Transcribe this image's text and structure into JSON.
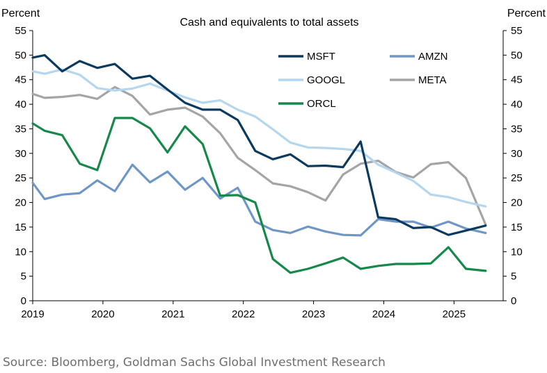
{
  "source_note": "Source: Bloomberg, Goldman Sachs Global Investment Research",
  "chart_data": {
    "type": "line",
    "title": "Cash and equivalents to total assets",
    "ylabel_left": "Percent",
    "ylabel_right": "Percent",
    "ylim": [
      0,
      55
    ],
    "yticks": [
      0,
      5,
      10,
      15,
      20,
      25,
      30,
      35,
      40,
      45,
      50,
      55
    ],
    "xlim": [
      2019.0,
      2025.7
    ],
    "xticks": [
      "2019",
      "2020",
      "2021",
      "2022",
      "2023",
      "2024",
      "2025"
    ],
    "grid": false,
    "legend_position": "top-right",
    "series": [
      {
        "name": "MSFT",
        "color": "#0b3a5e",
        "x": [
          2019.0,
          2019.17,
          2019.42,
          2019.67,
          2019.92,
          2020.17,
          2020.42,
          2020.67,
          2020.92,
          2021.17,
          2021.42,
          2021.67,
          2021.92,
          2022.17,
          2022.42,
          2022.67,
          2022.92,
          2023.17,
          2023.42,
          2023.67,
          2023.92,
          2024.17,
          2024.42,
          2024.67,
          2024.92,
          2025.17,
          2025.45
        ],
        "y": [
          49.5,
          50.0,
          46.7,
          48.8,
          47.4,
          48.2,
          45.2,
          45.8,
          43.0,
          40.3,
          38.9,
          38.9,
          36.8,
          30.5,
          28.8,
          29.8,
          27.4,
          27.5,
          27.2,
          32.4,
          17.0,
          16.6,
          14.8,
          15.0,
          13.4,
          14.3,
          15.3
        ]
      },
      {
        "name": "AMZN",
        "color": "#6e97c8",
        "x": [
          2019.0,
          2019.17,
          2019.42,
          2019.67,
          2019.92,
          2020.17,
          2020.42,
          2020.67,
          2020.92,
          2021.17,
          2021.42,
          2021.67,
          2021.92,
          2022.17,
          2022.42,
          2022.67,
          2022.92,
          2023.17,
          2023.42,
          2023.67,
          2023.92,
          2024.17,
          2024.42,
          2024.67,
          2024.92,
          2025.17,
          2025.45
        ],
        "y": [
          24.0,
          20.7,
          21.6,
          21.9,
          24.5,
          22.3,
          27.7,
          24.1,
          26.3,
          22.6,
          25.0,
          20.8,
          23.0,
          16.1,
          14.4,
          13.8,
          15.1,
          14.1,
          13.4,
          13.3,
          16.6,
          16.1,
          16.1,
          14.9,
          16.1,
          14.7,
          13.8
        ]
      },
      {
        "name": "GOOGL",
        "color": "#b4d6ef",
        "x": [
          2019.0,
          2019.17,
          2019.42,
          2019.67,
          2019.92,
          2020.17,
          2020.42,
          2020.67,
          2020.92,
          2021.17,
          2021.42,
          2021.67,
          2021.92,
          2022.17,
          2022.42,
          2022.67,
          2022.92,
          2023.17,
          2023.42,
          2023.67,
          2023.92,
          2024.17,
          2024.42,
          2024.67,
          2024.92,
          2025.17,
          2025.45
        ],
        "y": [
          46.7,
          46.2,
          47.1,
          46.0,
          43.3,
          42.8,
          43.2,
          44.2,
          42.8,
          41.4,
          40.3,
          40.8,
          38.9,
          37.5,
          34.9,
          32.2,
          31.2,
          31.1,
          30.9,
          30.5,
          27.7,
          26.1,
          24.4,
          21.6,
          21.1,
          20.1,
          19.2
        ]
      },
      {
        "name": "META",
        "color": "#a5a5a5",
        "x": [
          2019.0,
          2019.17,
          2019.42,
          2019.67,
          2019.92,
          2020.17,
          2020.42,
          2020.67,
          2020.92,
          2021.17,
          2021.42,
          2021.67,
          2021.92,
          2022.17,
          2022.42,
          2022.67,
          2022.92,
          2023.17,
          2023.42,
          2023.67,
          2023.92,
          2024.17,
          2024.42,
          2024.67,
          2024.92,
          2025.17,
          2025.45
        ],
        "y": [
          42.1,
          41.3,
          41.5,
          41.9,
          41.1,
          43.5,
          41.7,
          37.9,
          38.9,
          39.3,
          37.5,
          34.1,
          29.1,
          26.6,
          23.9,
          23.3,
          22.1,
          20.4,
          25.7,
          27.9,
          28.5,
          26.2,
          25.1,
          27.8,
          28.2,
          25.0,
          15.5
        ]
      },
      {
        "name": "ORCL",
        "color": "#16884a",
        "x": [
          2019.0,
          2019.17,
          2019.42,
          2019.67,
          2019.92,
          2020.17,
          2020.42,
          2020.67,
          2020.92,
          2021.17,
          2021.42,
          2021.67,
          2021.92,
          2022.17,
          2022.42,
          2022.67,
          2022.92,
          2023.17,
          2023.42,
          2023.67,
          2023.92,
          2024.17,
          2024.42,
          2024.67,
          2024.92,
          2025.17,
          2025.45
        ],
        "y": [
          36.1,
          34.6,
          33.7,
          27.9,
          26.6,
          37.2,
          37.2,
          35.1,
          30.2,
          35.5,
          31.9,
          21.4,
          21.5,
          20.0,
          8.5,
          5.7,
          6.5,
          7.6,
          8.8,
          6.5,
          7.1,
          7.5,
          7.5,
          7.6,
          10.9,
          6.5,
          6.1
        ]
      }
    ]
  }
}
